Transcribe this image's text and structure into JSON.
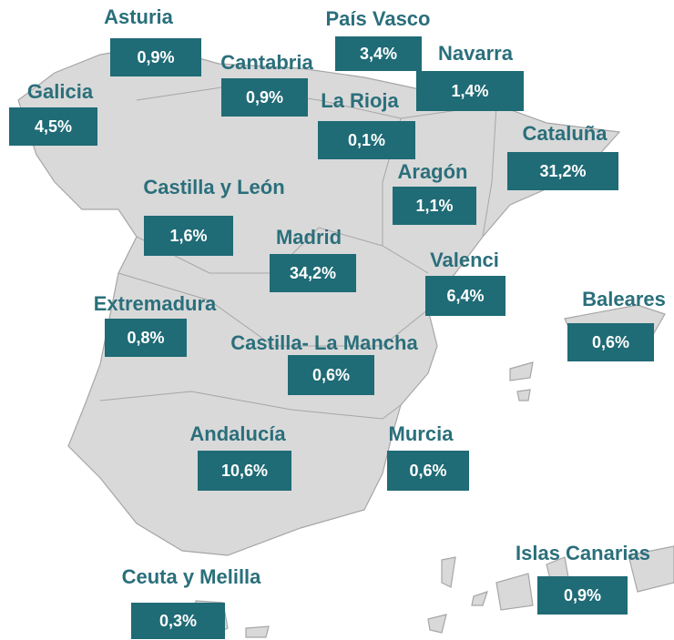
{
  "regions": [
    {
      "name": "Asturia",
      "value": "0,9%"
    },
    {
      "name": "País Vasco",
      "value": "3,4%"
    },
    {
      "name": "Cantabria",
      "value": "0,9%"
    },
    {
      "name": "Navarra",
      "value": "1,4%"
    },
    {
      "name": "Galicia",
      "value": "4,5%"
    },
    {
      "name": "La Rioja",
      "value": "0,1%"
    },
    {
      "name": "Cataluña",
      "value": "31,2%"
    },
    {
      "name": "Aragón",
      "value": "1,1%"
    },
    {
      "name": "Castilla y León",
      "value": "1,6%"
    },
    {
      "name": "Madrid",
      "value": "34,2%"
    },
    {
      "name": "Valenci",
      "value": "6,4%"
    },
    {
      "name": "Baleares",
      "value": "0,6%"
    },
    {
      "name": "Extremadura",
      "value": "0,8%"
    },
    {
      "name": "Castilla- La Mancha",
      "value": "0,6%"
    },
    {
      "name": "Andalucía",
      "value": "10,6%"
    },
    {
      "name": "Murcia",
      "value": "0,6%"
    },
    {
      "name": "Islas Canarias",
      "value": "0,9%"
    },
    {
      "name": "Ceuta y Melilla",
      "value": "0,3%"
    }
  ]
}
